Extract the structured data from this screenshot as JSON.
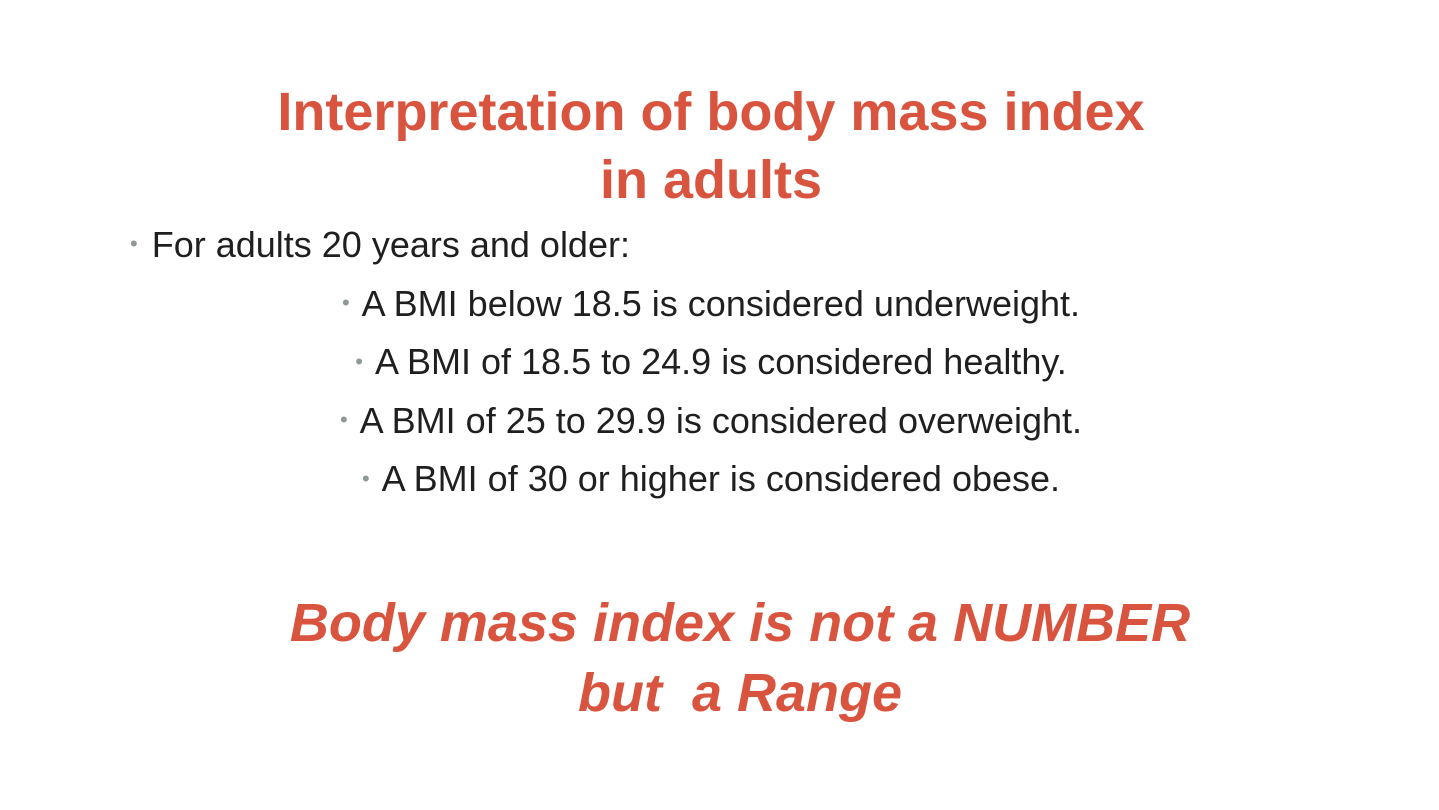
{
  "slide": {
    "title_line1": "Interpretation of body mass index",
    "title_line2": "in adults",
    "intro": "For adults 20 years and older:",
    "items": [
      "A BMI below 18.5 is considered underweight.",
      "A BMI of 18.5 to 24.9 is considered healthy.",
      "A BMI of 25 to 29.9 is considered overweight.",
      "A BMI of 30 or higher is considered obese."
    ],
    "tagline_line1": "Body mass index is not a NUMBER",
    "tagline_line2": "but  a Range",
    "bullet_glyph": "•"
  },
  "colors": {
    "accent": "#d9543f",
    "text": "#1f1f1f",
    "bullet": "#8e9896",
    "background": "#ffffff"
  }
}
